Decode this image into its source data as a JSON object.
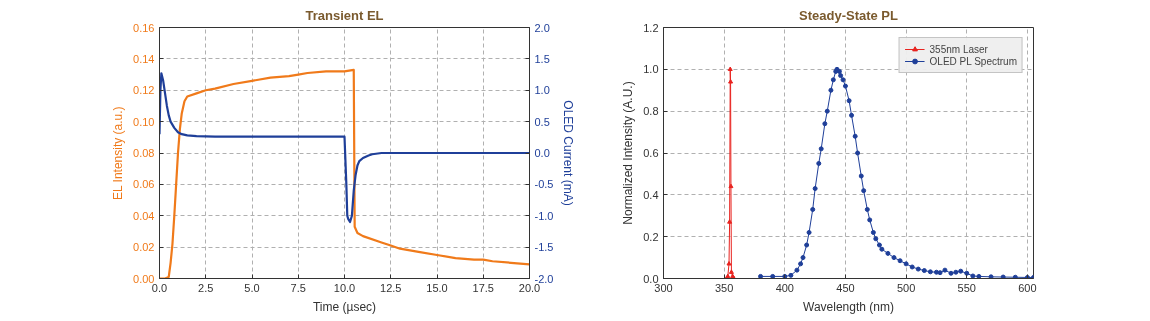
{
  "chart_data": [
    {
      "type": "line",
      "title": "Transient EL",
      "xlabel": "Time (µsec)",
      "ylabel": "EL Intensity (a.u.)",
      "y2label": "OLED Current (mA)",
      "xlim": [
        0,
        20
      ],
      "ylim": [
        0,
        0.16
      ],
      "y2lim": [
        -2,
        2
      ],
      "xticks": [
        {
          "value": 0,
          "label": "0.0"
        },
        2.5,
        {
          "value": 5,
          "label": "5.0"
        },
        7.5,
        {
          "value": 10,
          "label": "10.0"
        },
        12.5,
        {
          "value": 15,
          "label": "15.0"
        },
        17.5,
        {
          "value": 20,
          "label": "20.0"
        }
      ],
      "yticks": [
        {
          "value": 0,
          "label": "0.00"
        },
        {
          "value": 0.02,
          "label": "0.02"
        },
        {
          "value": 0.04,
          "label": "0.04"
        },
        {
          "value": 0.06,
          "label": "0.06"
        },
        {
          "value": 0.08,
          "label": "0.08"
        },
        {
          "value": 0.1,
          "label": "0.10"
        },
        {
          "value": 0.12,
          "label": "0.12"
        },
        {
          "value": 0.14,
          "label": "0.14"
        },
        {
          "value": 0.16,
          "label": "0.16"
        }
      ],
      "y2ticks": [
        {
          "value": -2,
          "label": "-2.0"
        },
        {
          "value": -1.5,
          "label": "-1.5"
        },
        {
          "value": -1,
          "label": "-1.0"
        },
        {
          "value": -0.5,
          "label": "-0.5"
        },
        {
          "value": 0,
          "label": "0.0"
        },
        {
          "value": 0.5,
          "label": "0.5"
        },
        {
          "value": 1,
          "label": "1.0"
        },
        {
          "value": 1.5,
          "label": "1.5"
        },
        {
          "value": 2,
          "label": "2.0"
        }
      ],
      "grid": true,
      "legend": false,
      "series": [
        {
          "color": "#f07a1a",
          "x": [
            0,
            0.3,
            0.5,
            0.6,
            0.7,
            0.8,
            0.9,
            1.0,
            1.1,
            1.2,
            1.35,
            1.5,
            2.0,
            2.5,
            3.0,
            4.0,
            5.0,
            6.0,
            7.0,
            7.5,
            8.0,
            9.0,
            10.0,
            10.5,
            10.55,
            10.7,
            11.0,
            12.0,
            12.5,
            13.0,
            14.0,
            15.0,
            16.0,
            17.0,
            17.5,
            18.0,
            19.0,
            20.0
          ],
          "values": [
            0,
            0,
            0.001,
            0.01,
            0.022,
            0.04,
            0.06,
            0.08,
            0.095,
            0.105,
            0.113,
            0.116,
            0.118,
            0.12,
            0.121,
            0.124,
            0.126,
            0.128,
            0.129,
            0.13,
            0.131,
            0.132,
            0.132,
            0.133,
            0.033,
            0.029,
            0.027,
            0.023,
            0.021,
            0.019,
            0.017,
            0.015,
            0.013,
            0.012,
            0.012,
            0.011,
            0.01,
            0.009
          ]
        },
        {
          "color": "#1f3f99",
          "axis": "y2",
          "x": [
            0,
            0.05,
            0.1,
            0.2,
            0.3,
            0.4,
            0.5,
            0.6,
            0.8,
            1.0,
            1.2,
            1.5,
            2.0,
            3.0,
            5.0,
            7.5,
            10.0,
            10.1,
            10.15,
            10.2,
            10.3,
            10.4,
            10.5,
            10.6,
            10.7,
            10.8,
            11.0,
            11.3,
            11.5,
            12.0,
            13.0,
            15.0,
            17.5,
            20.0
          ],
          "values": [
            0.3,
            1.0,
            1.27,
            1.15,
            0.95,
            0.75,
            0.6,
            0.5,
            0.4,
            0.33,
            0.3,
            0.28,
            0.27,
            0.26,
            0.26,
            0.26,
            0.26,
            -0.5,
            -1.0,
            -1.05,
            -1.1,
            -1.0,
            -0.6,
            -0.35,
            -0.2,
            -0.13,
            -0.08,
            -0.04,
            -0.02,
            0,
            0,
            0,
            0,
            0
          ]
        }
      ]
    },
    {
      "type": "line",
      "title": "Steady-State PL",
      "xlabel": "Wavelength (nm)",
      "ylabel": "Normalized Intensity (A.U.)",
      "xlim": [
        300,
        605
      ],
      "ylim": [
        0,
        1.2
      ],
      "xticks": [
        300,
        350,
        400,
        450,
        500,
        550,
        600
      ],
      "yticks": [
        {
          "value": 0,
          "label": "0.0"
        },
        0.2,
        0.4,
        0.6,
        0.8,
        {
          "value": 1,
          "label": "1.0"
        },
        1.2
      ],
      "grid": true,
      "legend": "top right",
      "series": [
        {
          "name": "355nm Laser",
          "color": "#e8231f",
          "marker": "triangle",
          "x": [
            352,
            353,
            354,
            354.5,
            355,
            355.3,
            355.6,
            356,
            357,
            358
          ],
          "values": [
            0,
            0.01,
            0.07,
            0.27,
            1.0,
            0.94,
            0.44,
            0.03,
            0.01,
            0
          ]
        },
        {
          "name": "OLED PL Spectrum",
          "color": "#1f3f99",
          "marker": "circle",
          "x": [
            380,
            390,
            400,
            405,
            410,
            413,
            415,
            418,
            420,
            423,
            425,
            428,
            430,
            433,
            435,
            438,
            440,
            442,
            443,
            445,
            446,
            448,
            450,
            453,
            455,
            458,
            460,
            463,
            465,
            468,
            470,
            473,
            475,
            478,
            480,
            485,
            490,
            495,
            500,
            505,
            510,
            515,
            520,
            525,
            528,
            532,
            537,
            541,
            545,
            550,
            555,
            560,
            570,
            580,
            590,
            600,
            605
          ],
          "values": [
            0.01,
            0.01,
            0.01,
            0.015,
            0.04,
            0.07,
            0.1,
            0.16,
            0.22,
            0.33,
            0.43,
            0.55,
            0.62,
            0.74,
            0.8,
            0.9,
            0.95,
            0.99,
            1.0,
            0.99,
            0.97,
            0.95,
            0.92,
            0.85,
            0.78,
            0.68,
            0.6,
            0.49,
            0.42,
            0.33,
            0.28,
            0.22,
            0.19,
            0.16,
            0.14,
            0.12,
            0.1,
            0.085,
            0.07,
            0.055,
            0.045,
            0.038,
            0.032,
            0.03,
            0.028,
            0.04,
            0.025,
            0.03,
            0.035,
            0.025,
            0.012,
            0.01,
            0.008,
            0.007,
            0.006,
            0.005,
            0.005
          ]
        }
      ]
    }
  ]
}
